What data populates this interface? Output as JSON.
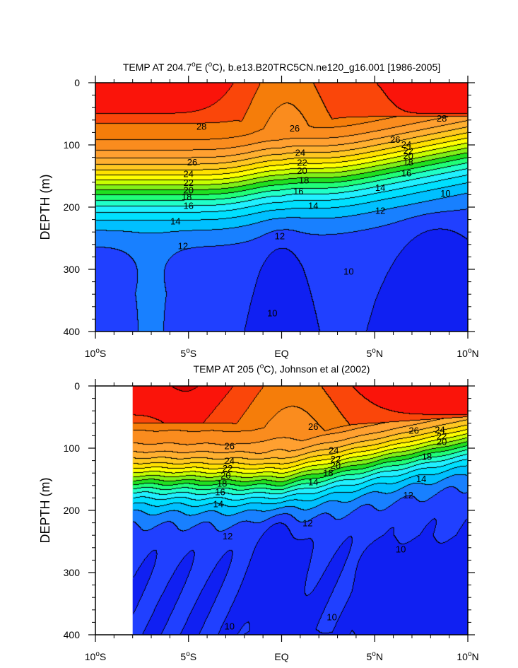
{
  "chart_data": [
    {
      "type": "heatmap",
      "title": "TEMP AT 204.7°E (°C), b.e13.B20TRC5CN.ne120_g16.001 [1986-2005]",
      "title_parts": [
        "TEMP AT 204.7",
        "o",
        "E (",
        "o",
        "C), b.e13.B20TRC5CN.ne120_g16.001 [1986-2005]"
      ],
      "ylabel": "DEPTH (m)",
      "xlim": [
        -10,
        10
      ],
      "ylim": [
        0,
        400
      ],
      "y_inverted": true,
      "yticks": [
        0,
        100,
        200,
        300,
        400
      ],
      "ytick_labels": [
        "0",
        "100",
        "200",
        "300",
        "400"
      ],
      "xticks": [
        -10,
        -5,
        0,
        5,
        10
      ],
      "xtick_labels": [
        {
          "main": "10",
          "sup": "o",
          "suffix": "S"
        },
        {
          "main": "5",
          "sup": "o",
          "suffix": "S"
        },
        {
          "main": "EQ",
          "sup": "",
          "suffix": ""
        },
        {
          "main": "5",
          "sup": "o",
          "suffix": "N"
        },
        {
          "main": "10",
          "sup": "o",
          "suffix": "N"
        }
      ],
      "data_xlim": [
        -10,
        10
      ],
      "contour_interval": 1,
      "contour_labels": [
        {
          "text": "28",
          "x": -4.3,
          "y": 70
        },
        {
          "text": "28",
          "x": 8.6,
          "y": 57
        },
        {
          "text": "26",
          "x": 0.7,
          "y": 73
        },
        {
          "text": "26",
          "x": -4.8,
          "y": 127
        },
        {
          "text": "26",
          "x": 6.1,
          "y": 91
        },
        {
          "text": "24",
          "x": -5.0,
          "y": 146
        },
        {
          "text": "24",
          "x": 1.0,
          "y": 112
        },
        {
          "text": "24",
          "x": 6.7,
          "y": 99
        },
        {
          "text": "22",
          "x": -5.0,
          "y": 160
        },
        {
          "text": "22",
          "x": 1.1,
          "y": 128
        },
        {
          "text": "22",
          "x": 6.8,
          "y": 109
        },
        {
          "text": "20",
          "x": -5.0,
          "y": 172
        },
        {
          "text": "20",
          "x": 1.1,
          "y": 141
        },
        {
          "text": "20",
          "x": 6.8,
          "y": 117
        },
        {
          "text": "18",
          "x": -5.1,
          "y": 183
        },
        {
          "text": "18",
          "x": 1.2,
          "y": 156
        },
        {
          "text": "18",
          "x": 6.8,
          "y": 127
        },
        {
          "text": "16",
          "x": -5.0,
          "y": 197
        },
        {
          "text": "16",
          "x": 0.9,
          "y": 174
        },
        {
          "text": "16",
          "x": 6.7,
          "y": 145
        },
        {
          "text": "14",
          "x": -5.7,
          "y": 222
        },
        {
          "text": "14",
          "x": 1.7,
          "y": 197
        },
        {
          "text": "14",
          "x": 5.3,
          "y": 168
        },
        {
          "text": "12",
          "x": -5.3,
          "y": 262
        },
        {
          "text": "12",
          "x": -0.1,
          "y": 246
        },
        {
          "text": "12",
          "x": 5.3,
          "y": 205
        },
        {
          "text": "10",
          "x": 3.6,
          "y": 303
        },
        {
          "text": "10",
          "x": 8.8,
          "y": 177
        },
        {
          "text": "10",
          "x": -0.5,
          "y": 370
        }
      ]
    },
    {
      "type": "heatmap",
      "title": "TEMP AT 205 (°C), Johnson et al (2002)",
      "title_parts": [
        "TEMP AT 205 (",
        "o",
        "C), Johnson et al (2002)"
      ],
      "ylabel": "DEPTH (m)",
      "xlim": [
        -10,
        10
      ],
      "ylim": [
        0,
        400
      ],
      "y_inverted": true,
      "yticks": [
        0,
        100,
        200,
        300,
        400
      ],
      "ytick_labels": [
        "0",
        "100",
        "200",
        "300",
        "400"
      ],
      "xticks": [
        -10,
        -5,
        0,
        5,
        10
      ],
      "xtick_labels": [
        {
          "main": "10",
          "sup": "o",
          "suffix": "S"
        },
        {
          "main": "5",
          "sup": "o",
          "suffix": "S"
        },
        {
          "main": "EQ",
          "sup": "",
          "suffix": ""
        },
        {
          "main": "5",
          "sup": "o",
          "suffix": "N"
        },
        {
          "main": "10",
          "sup": "o",
          "suffix": "N"
        }
      ],
      "data_xlim": [
        -8,
        10
      ],
      "contour_interval": 1,
      "contour_labels": [
        {
          "text": "26",
          "x": 1.7,
          "y": 65
        },
        {
          "text": "26",
          "x": -2.8,
          "y": 96
        },
        {
          "text": "26",
          "x": 7.1,
          "y": 71
        },
        {
          "text": "24",
          "x": -2.8,
          "y": 120
        },
        {
          "text": "24",
          "x": 2.8,
          "y": 103
        },
        {
          "text": "24",
          "x": 8.5,
          "y": 70
        },
        {
          "text": "22",
          "x": -2.9,
          "y": 132
        },
        {
          "text": "22",
          "x": 2.9,
          "y": 117
        },
        {
          "text": "22",
          "x": 8.6,
          "y": 80
        },
        {
          "text": "20",
          "x": -3.0,
          "y": 143
        },
        {
          "text": "20",
          "x": 2.9,
          "y": 127
        },
        {
          "text": "20",
          "x": 8.6,
          "y": 89
        },
        {
          "text": "18",
          "x": -3.2,
          "y": 156
        },
        {
          "text": "18",
          "x": 2.5,
          "y": 139
        },
        {
          "text": "18",
          "x": 7.8,
          "y": 113
        },
        {
          "text": "16",
          "x": -3.3,
          "y": 170
        },
        {
          "text": "14",
          "x": -3.4,
          "y": 189
        },
        {
          "text": "14",
          "x": 1.7,
          "y": 154
        },
        {
          "text": "14",
          "x": 7.5,
          "y": 149
        },
        {
          "text": "12",
          "x": -2.9,
          "y": 241
        },
        {
          "text": "12",
          "x": 1.4,
          "y": 220
        },
        {
          "text": "12",
          "x": 6.8,
          "y": 175
        },
        {
          "text": "10",
          "x": 6.4,
          "y": 262
        },
        {
          "text": "10",
          "x": 2.7,
          "y": 371
        },
        {
          "text": "10",
          "x": -2.8,
          "y": 386
        }
      ]
    }
  ]
}
